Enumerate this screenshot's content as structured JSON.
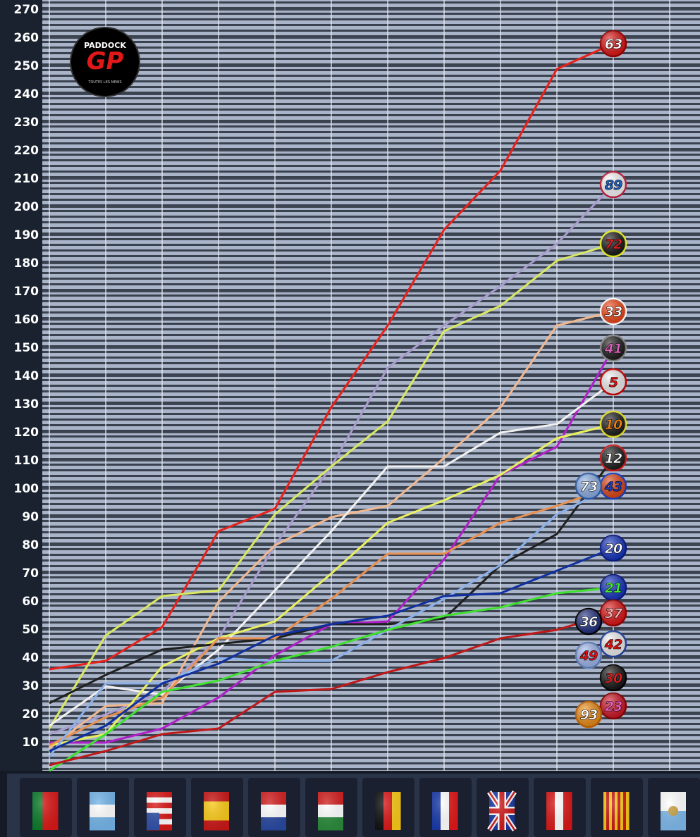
{
  "chart_data": {
    "type": "line",
    "logo": {
      "top": "PADDOCK",
      "main": "GP",
      "sub": "TOUTES LES NEWS"
    },
    "categories": [
      null,
      null,
      null,
      null,
      null,
      null,
      null,
      null,
      null,
      null,
      null,
      null
    ],
    "ylim": [
      0,
      273.5
    ],
    "yticks": [
      10,
      20,
      30,
      40,
      50,
      60,
      70,
      80,
      90,
      100,
      110,
      120,
      130,
      140,
      150,
      160,
      170,
      180,
      190,
      200,
      210,
      220,
      230,
      240,
      250,
      260,
      270
    ],
    "grid": true,
    "series": [
      {
        "name": "63",
        "color": "#e8201a",
        "values": [
          36,
          39,
          51,
          85,
          93,
          129,
          158,
          192,
          213,
          249,
          258,
          null
        ]
      },
      {
        "name": "89",
        "color": "#a89ccc",
        "values": [
          13,
          20,
          28,
          47,
          80,
          108,
          143,
          158,
          172,
          187,
          208,
          null
        ]
      },
      {
        "name": "72",
        "color": "#d8e860",
        "values": [
          15,
          48,
          62,
          64,
          91,
          108,
          124,
          156,
          165,
          181,
          187,
          null
        ]
      },
      {
        "name": "33",
        "color": "#f0b890",
        "values": [
          8,
          23,
          24,
          60,
          80,
          90,
          94,
          111,
          129,
          158,
          163,
          null
        ]
      },
      {
        "name": "41",
        "color": "#b020c8",
        "values": [
          10,
          10,
          15,
          26,
          41,
          52,
          53,
          75,
          105,
          115,
          150,
          null
        ]
      },
      {
        "name": "5",
        "color": "#f0f0f0",
        "values": [
          16,
          30,
          27,
          43,
          64,
          85,
          108,
          108,
          120,
          123,
          138,
          null
        ]
      },
      {
        "name": "10",
        "color": "#e8f060",
        "values": [
          9,
          13,
          37,
          47,
          53,
          70,
          88,
          96,
          105,
          118,
          123,
          null
        ]
      },
      {
        "name": "12",
        "color": "#202020",
        "values": [
          24,
          34,
          43,
          45,
          47,
          52,
          52,
          54,
          73,
          84,
          111,
          null
        ]
      },
      {
        "name": "43",
        "color": "#e89050",
        "values": [
          9,
          19,
          26,
          47,
          47,
          61,
          77,
          77,
          88,
          94,
          101,
          null
        ]
      },
      {
        "name": "73",
        "color": "#8cb0e8",
        "values": [
          5,
          31,
          31,
          40,
          39,
          39,
          50,
          61,
          73,
          91,
          101,
          null
        ]
      },
      {
        "name": "20",
        "color": "#1030a0",
        "values": [
          7,
          16,
          31,
          38,
          48,
          52,
          55,
          62,
          63,
          71,
          79,
          null
        ]
      },
      {
        "name": "21",
        "color": "#40e030",
        "values": [
          0,
          13,
          28,
          32,
          39,
          44,
          50,
          55,
          58,
          63,
          65,
          null
        ]
      },
      {
        "name": "37",
        "color": "#c01818",
        "values": [
          2,
          7,
          13,
          15,
          28,
          29,
          35,
          40,
          47,
          50,
          56,
          null
        ]
      },
      {
        "name": "36",
        "color": "#1a2a80",
        "values": [
          null,
          null,
          null,
          null,
          null,
          null,
          null,
          null,
          null,
          null,
          53,
          null
        ]
      },
      {
        "name": "42",
        "color": "#e02020",
        "values": [
          null,
          null,
          null,
          null,
          null,
          null,
          null,
          null,
          null,
          null,
          45,
          null
        ]
      },
      {
        "name": "49",
        "color": "#9ab0f0",
        "values": [
          null,
          null,
          null,
          null,
          null,
          null,
          null,
          null,
          null,
          null,
          41,
          null
        ]
      },
      {
        "name": "30",
        "color": "#101010",
        "values": [
          null,
          null,
          null,
          null,
          null,
          null,
          null,
          null,
          null,
          null,
          33,
          null
        ]
      },
      {
        "name": "23",
        "color": "#d01020",
        "values": [
          null,
          null,
          null,
          null,
          null,
          null,
          null,
          null,
          null,
          null,
          23,
          null
        ]
      },
      {
        "name": "93",
        "color": "#f08c10",
        "values": [
          null,
          null,
          null,
          null,
          null,
          null,
          null,
          null,
          null,
          null,
          20,
          null
        ]
      }
    ]
  }
}
